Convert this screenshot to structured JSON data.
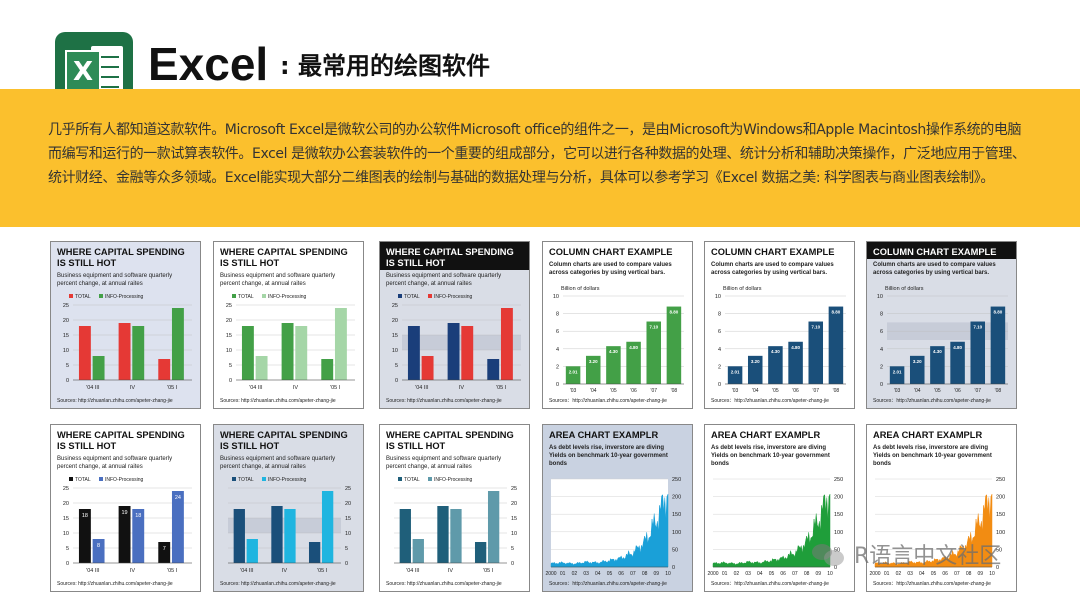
{
  "header": {
    "title_main": "Excel",
    "title_sub": ": 最常用的绘图软件",
    "logo_letter": "X"
  },
  "intro_text": "几乎所有人都知道这款软件。Microsoft Excel是微软公司的办公软件Microsoft office的组件之一，是由Microsoft为Windows和Apple Macintosh操作系统的电脑而编写和运行的一款试算表软件。Excel 是微软办公套装软件的一个重要的组成部分，它可以进行各种数据的处理、统计分析和辅助决策操作，广泛地应用于管理、统计财经、金融等众多领域。Excel能实现大部分二维图表的绘制与基础的数据处理与分析，具体可以参考学习《Excel 数据之美: 科学图表与商业图表绘制》。",
  "watermark": "R语言中文社区",
  "colors": {
    "band": "#fbc02d",
    "logo": "#1e7145"
  },
  "capital": {
    "title": [
      "WHERE CAPITAL SPENDING",
      "IS STILL HOT"
    ],
    "subtitle": [
      "Business equipment and software quarterly",
      "percent change, at annual raites"
    ],
    "legend": [
      "TOTAL",
      "INFO-Processing"
    ],
    "source": "Sources: http://zhuanlan.zhihu.com/apeter-zhang-jie"
  },
  "column": {
    "title": "COLUMN CHART EXAMPLE",
    "subtitle": [
      "Column charts are used to compare values",
      "across categories by using vertical bars."
    ],
    "unit": "Billion of dollars",
    "source": "Sources：http://zhuanlan.zhihu.com/apeter-zhang-jie"
  },
  "area": {
    "title": "AREA CHART EXAMPLR",
    "subtitle": [
      "As debt levels rise, inverstore are diving",
      "Yields on benchmark 10-year government",
      "bonds"
    ],
    "source": "Sources：http://zhuanlan.zhihu.com/apeter-zhang-jie"
  },
  "chart_data": [
    {
      "type": "bar",
      "id": "capital-1",
      "title": "WHERE CAPITAL SPENDING IS STILL HOT",
      "categories": [
        "'04 III",
        "IV",
        "'05 I"
      ],
      "series": [
        {
          "name": "TOTAL",
          "values": [
            18,
            19,
            7
          ]
        },
        {
          "name": "INFO-Processing",
          "values": [
            8,
            18,
            24
          ]
        }
      ],
      "ylim": [
        0,
        25
      ],
      "yticks": [
        0,
        5,
        10,
        15,
        20,
        25
      ],
      "colors": [
        "#e53935",
        "#43a047"
      ]
    },
    {
      "type": "bar",
      "id": "capital-2",
      "title": "WHERE CAPITAL SPENDING IS STILL HOT",
      "categories": [
        "'04 III",
        "IV",
        "'05 I"
      ],
      "series": [
        {
          "name": "TOTAL",
          "values": [
            18,
            19,
            7
          ]
        },
        {
          "name": "INFO-Processing",
          "values": [
            8,
            18,
            24
          ]
        }
      ],
      "ylim": [
        0,
        25
      ],
      "yticks": [
        0,
        5,
        10,
        15,
        20,
        25
      ],
      "colors": [
        "#43a047",
        "#a5d6a7"
      ]
    },
    {
      "type": "bar",
      "id": "capital-3",
      "title": "WHERE CAPITAL SPENDING IS STILL HOT",
      "categories": [
        "'04 III",
        "IV",
        "'05 I"
      ],
      "series": [
        {
          "name": "TOTAL",
          "values": [
            18,
            19,
            7
          ]
        },
        {
          "name": "INFO-Processing",
          "values": [
            8,
            18,
            24
          ]
        }
      ],
      "ylim": [
        0,
        25
      ],
      "yticks": [
        0,
        5,
        10,
        15,
        20,
        25
      ],
      "colors": [
        "#1a3e7a",
        "#e53935"
      ]
    },
    {
      "type": "bar",
      "id": "column-1",
      "title": "COLUMN CHART EXAMPLE",
      "categories": [
        "'03",
        "'04",
        "'05",
        "'06",
        "'07",
        "'08"
      ],
      "values": [
        2.01,
        3.2,
        4.3,
        4.8,
        7.1,
        8.8
      ],
      "ylim": [
        0,
        10
      ],
      "yticks": [
        0,
        2,
        4,
        6,
        8,
        10
      ],
      "color": "#43a047"
    },
    {
      "type": "bar",
      "id": "column-2",
      "title": "COLUMN CHART EXAMPLE",
      "categories": [
        "'03",
        "'04",
        "'05",
        "'06",
        "'07",
        "'08"
      ],
      "values": [
        2.01,
        3.2,
        4.3,
        4.8,
        7.1,
        8.8
      ],
      "ylim": [
        0,
        10
      ],
      "yticks": [
        0,
        2,
        4,
        6,
        8,
        10
      ],
      "color": "#1a4f7a"
    },
    {
      "type": "bar",
      "id": "column-3",
      "title": "COLUMN CHART EXAMPLE",
      "categories": [
        "'03",
        "'04",
        "'05",
        "'06",
        "'07",
        "'08"
      ],
      "values": [
        2.01,
        3.2,
        4.3,
        4.8,
        7.1,
        8.8
      ],
      "ylim": [
        0,
        10
      ],
      "yticks": [
        0,
        2,
        4,
        6,
        8,
        10
      ],
      "color": "#1a4f7a"
    },
    {
      "type": "bar",
      "id": "capital-4",
      "title": "WHERE CAPITAL SPENDING IS STILL HOT",
      "categories": [
        "'04 III",
        "IV",
        "'05 I"
      ],
      "series": [
        {
          "name": "TOTAL",
          "values": [
            18,
            19,
            7
          ]
        },
        {
          "name": "INFO-Processing",
          "values": [
            8,
            18,
            24
          ]
        }
      ],
      "ylim": [
        0,
        25
      ],
      "yticks": [
        0,
        5,
        10,
        15,
        20,
        25
      ],
      "colors": [
        "#111111",
        "#4a6fc0"
      ],
      "data_labels": true
    },
    {
      "type": "bar",
      "id": "capital-5",
      "title": "WHERE CAPITAL SPENDING IS STILL HOT",
      "categories": [
        "'04 III",
        "IV",
        "'05 I"
      ],
      "series": [
        {
          "name": "TOTAL",
          "values": [
            18,
            19,
            7
          ]
        },
        {
          "name": "INFO-Processing",
          "values": [
            8,
            18,
            24
          ]
        }
      ],
      "ylim": [
        0,
        25
      ],
      "yticks": [
        0,
        5,
        10,
        15,
        20,
        25
      ],
      "colors": [
        "#1a4f7a",
        "#1fb5e0"
      ]
    },
    {
      "type": "bar",
      "id": "capital-6",
      "title": "WHERE CAPITAL SPENDING IS STILL HOT",
      "categories": [
        "'04 III",
        "IV",
        "'05 I"
      ],
      "series": [
        {
          "name": "TOTAL",
          "values": [
            18,
            19,
            7
          ]
        },
        {
          "name": "INFO-Processing",
          "values": [
            8,
            18,
            24
          ]
        }
      ],
      "ylim": [
        0,
        25
      ],
      "yticks": [
        0,
        5,
        10,
        15,
        20,
        25
      ],
      "colors": [
        "#1f5f7a",
        "#5f9aaa"
      ]
    },
    {
      "type": "area",
      "id": "area-1",
      "title": "AREA CHART EXAMPLR",
      "x": [
        "2000",
        "01",
        "02",
        "03",
        "04",
        "05",
        "06",
        "07",
        "08",
        "09",
        "10"
      ],
      "values": [
        10,
        12,
        9,
        14,
        12,
        18,
        25,
        40,
        70,
        130,
        210
      ],
      "ylim": [
        0,
        250
      ],
      "yticks": [
        0,
        50,
        100,
        150,
        200,
        250
      ],
      "color": "#1aa0d8"
    },
    {
      "type": "area",
      "id": "area-2",
      "title": "AREA CHART EXAMPLR",
      "x": [
        "2000",
        "01",
        "02",
        "03",
        "04",
        "05",
        "06",
        "07",
        "08",
        "09",
        "10"
      ],
      "values": [
        10,
        12,
        9,
        14,
        12,
        18,
        25,
        40,
        70,
        130,
        210
      ],
      "ylim": [
        0,
        250
      ],
      "yticks": [
        0,
        50,
        100,
        150,
        200,
        250
      ],
      "color": "#1f9e3a"
    },
    {
      "type": "area",
      "id": "area-3",
      "title": "AREA CHART EXAMPLR",
      "x": [
        "2000",
        "01",
        "02",
        "03",
        "04",
        "05",
        "06",
        "07",
        "08",
        "09",
        "10"
      ],
      "values": [
        10,
        12,
        9,
        14,
        12,
        18,
        25,
        40,
        70,
        130,
        210
      ],
      "ylim": [
        0,
        250
      ],
      "yticks": [
        0,
        50,
        100,
        150,
        200,
        250
      ],
      "color": "#f28c12"
    }
  ]
}
